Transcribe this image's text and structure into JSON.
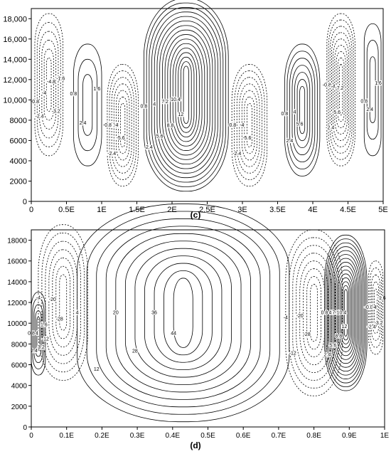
{
  "chart_data": [
    {
      "type": "contour",
      "panel_label": "(c)",
      "x_tick_labels": [
        "0",
        "0.5E",
        "1E",
        "1.5E",
        "2E",
        "2.5E",
        "3E",
        "3.5E",
        "4E",
        "4.5E",
        "5E"
      ],
      "y_tick_labels": [
        "0",
        "2000",
        "4000",
        "6000",
        "8000",
        "10,000",
        "12,000",
        "14,000",
        "16,000",
        "18,000"
      ],
      "xlim": [
        0,
        5
      ],
      "ylim": [
        0,
        19000
      ],
      "positive_contours": "solid",
      "negative_contours": "dashed",
      "cells": [
        {
          "xc": 0.25,
          "yc": 11500,
          "rx": 0.2,
          "ry": 7000,
          "peak": 4.8,
          "sign": -1
        },
        {
          "xc": 0.8,
          "yc": 9500,
          "rx": 0.2,
          "ry": 6000,
          "peak": 2.4,
          "sign": 1
        },
        {
          "xc": 1.3,
          "yc": 7500,
          "rx": 0.22,
          "ry": 6000,
          "peak": 5.6,
          "sign": -1
        },
        {
          "xc": 2.2,
          "yc": 10500,
          "rx": 0.6,
          "ry": 9500,
          "peak": 12.8,
          "sign": 1
        },
        {
          "xc": 3.1,
          "yc": 7500,
          "rx": 0.25,
          "ry": 6000,
          "peak": 5.6,
          "sign": -1
        },
        {
          "xc": 3.85,
          "yc": 9000,
          "rx": 0.25,
          "ry": 6500,
          "peak": 5.6,
          "sign": 1
        },
        {
          "xc": 4.4,
          "yc": 11000,
          "rx": 0.2,
          "ry": 7500,
          "peak": 7.2,
          "sign": -1
        },
        {
          "xc": 4.85,
          "yc": 11000,
          "rx": 0.12,
          "ry": 6500,
          "peak": 2.4,
          "sign": 1
        }
      ],
      "contour_labels": [
        "-0.8",
        "-1.6",
        "-2.4",
        "-3.2",
        "-4",
        "-4.8",
        "-5.6",
        "-6.4",
        "-7.2",
        "0.8",
        "1.6",
        "2.4",
        "3.2",
        "4",
        "4.8",
        "5.6",
        "6.4",
        "7.2",
        "8",
        "8.8",
        "9.6",
        "10.4",
        "11.2",
        "12",
        "12.8"
      ]
    },
    {
      "type": "contour",
      "panel_label": "(d)",
      "x_tick_labels": [
        "0",
        "0.1E",
        "0.2E",
        "0.3E",
        "0.4E",
        "0.5E",
        "0.6E",
        "0.7E",
        "0.8E",
        "0.9E",
        "1E"
      ],
      "y_tick_labels": [
        "0",
        "2000",
        "4000",
        "6000",
        "8000",
        "10000",
        "12000",
        "14000",
        "16000",
        "18000"
      ],
      "xlim": [
        0,
        1
      ],
      "ylim": [
        0,
        19000
      ],
      "positive_contours": "solid",
      "negative_contours": "dashed",
      "cells": [
        {
          "xc": 0.02,
          "yc": 9000,
          "rx": 0.02,
          "ry": 4000,
          "peak": 4,
          "sign": 1
        },
        {
          "xc": 0.09,
          "yc": 12000,
          "rx": 0.07,
          "ry": 7500,
          "peak": 28,
          "sign": -1
        },
        {
          "xc": 0.43,
          "yc": 11000,
          "rx": 0.3,
          "ry": 10500,
          "peak": 44,
          "sign": 1
        },
        {
          "xc": 0.8,
          "yc": 11000,
          "rx": 0.08,
          "ry": 8000,
          "peak": 32,
          "sign": -1
        },
        {
          "xc": 0.89,
          "yc": 11000,
          "rx": 0.06,
          "ry": 7500,
          "peak": 12,
          "sign": 1
        },
        {
          "xc": 0.975,
          "yc": 11500,
          "rx": 0.02,
          "ry": 4500,
          "peak": 4,
          "sign": -1
        }
      ],
      "contour_labels": [
        "-4",
        "-8",
        "-12",
        "-16",
        "-20",
        "-24",
        "-28",
        "-32",
        "4",
        "8",
        "12",
        "16",
        "20",
        "24",
        "28",
        "32",
        "36",
        "40",
        "44"
      ]
    }
  ]
}
